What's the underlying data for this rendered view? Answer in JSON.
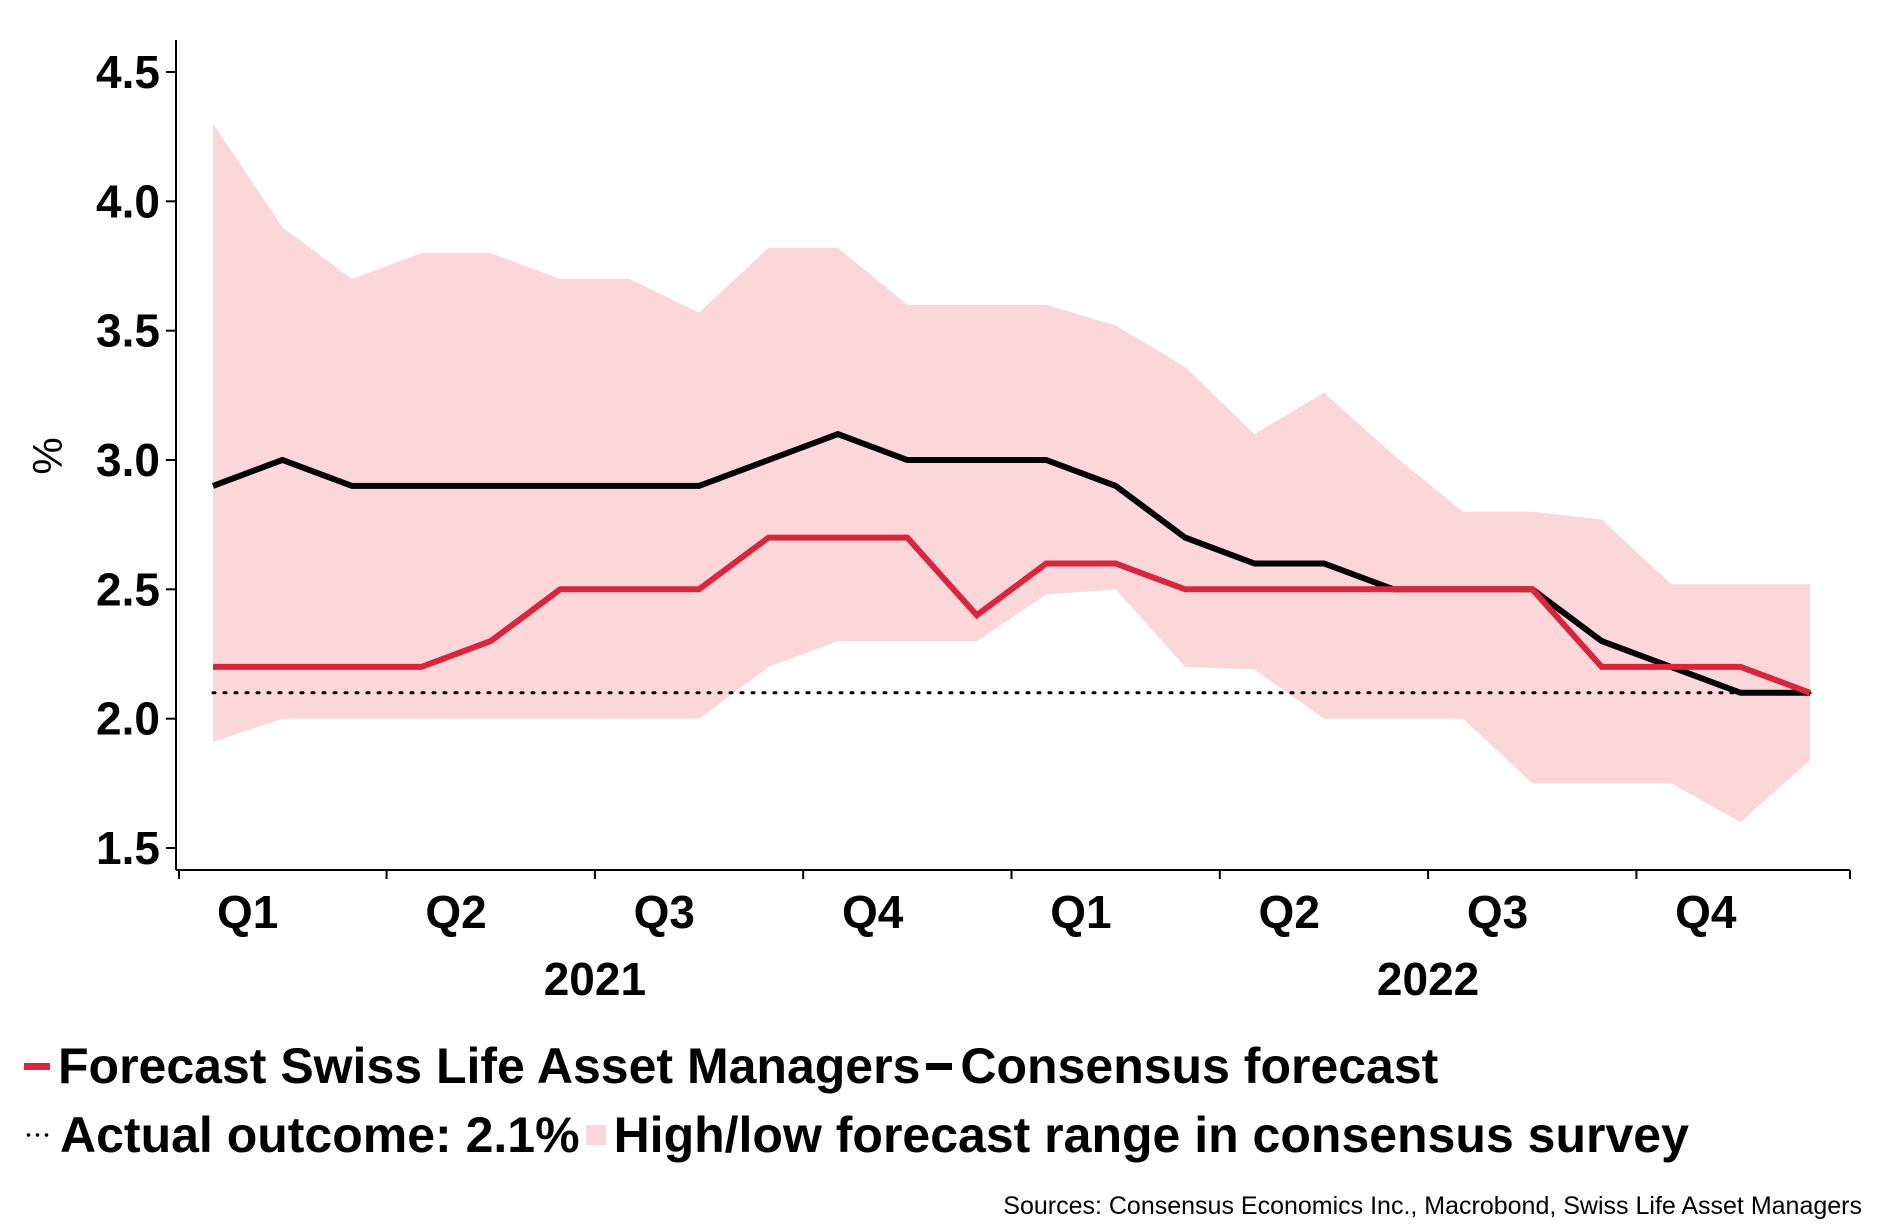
{
  "chart_data": {
    "type": "line",
    "title": "",
    "ylabel": "%",
    "xlabel": "",
    "ylim": [
      1.5,
      4.5
    ],
    "yticks": [
      1.5,
      2.0,
      2.5,
      3.0,
      3.5,
      4.0,
      4.5
    ],
    "ytick_labels": [
      "1.5",
      "2.0",
      "2.5",
      "3.0",
      "3.5",
      "4.0",
      "4.5"
    ],
    "num_points": 24,
    "quarter_ticks": [
      {
        "label": "Q1",
        "pos": 0.5
      },
      {
        "label": "Q2",
        "pos": 3.5
      },
      {
        "label": "Q3",
        "pos": 6.5
      },
      {
        "label": "Q4",
        "pos": 9.5
      },
      {
        "label": "Q1",
        "pos": 12.5
      },
      {
        "label": "Q2",
        "pos": 15.5
      },
      {
        "label": "Q3",
        "pos": 18.5
      },
      {
        "label": "Q4",
        "pos": 21.5
      }
    ],
    "years": [
      {
        "label": "2021",
        "pos": 5.5
      },
      {
        "label": "2022",
        "pos": 17.5
      }
    ],
    "series": [
      {
        "name": "Forecast Swiss Life Asset Managers",
        "color": "#d7263d",
        "values": [
          2.2,
          2.2,
          2.2,
          2.2,
          2.3,
          2.5,
          2.5,
          2.5,
          2.7,
          2.7,
          2.7,
          2.4,
          2.6,
          2.6,
          2.5,
          2.5,
          2.5,
          2.5,
          2.5,
          2.5,
          2.2,
          2.2,
          2.2,
          2.1
        ]
      },
      {
        "name": "Consensus forecast",
        "color": "#000000",
        "values": [
          2.9,
          3.0,
          2.9,
          2.9,
          2.9,
          2.9,
          2.9,
          2.9,
          3.0,
          3.1,
          3.0,
          3.0,
          3.0,
          2.9,
          2.7,
          2.6,
          2.6,
          2.5,
          2.5,
          2.5,
          2.3,
          2.2,
          2.1,
          2.1
        ]
      }
    ],
    "range": {
      "name": "High/low forecast range in consensus survey",
      "color": "#fcd7d9",
      "high": [
        4.3,
        3.9,
        3.7,
        3.8,
        3.8,
        3.7,
        3.7,
        3.57,
        3.82,
        3.82,
        3.6,
        3.6,
        3.6,
        3.52,
        3.36,
        3.1,
        3.26,
        3.02,
        2.8,
        2.8,
        2.77,
        2.52,
        2.52,
        2.52
      ],
      "low": [
        1.91,
        2.0,
        2.0,
        2.0,
        2.0,
        2.0,
        2.0,
        2.0,
        2.2,
        2.3,
        2.3,
        2.3,
        2.48,
        2.5,
        2.2,
        2.19,
        2.0,
        2.0,
        2.0,
        1.75,
        1.75,
        1.75,
        1.6,
        1.84
      ]
    },
    "actual": {
      "name": "Actual outcome: 2.1%",
      "value": 2.1,
      "color": "#000000"
    }
  },
  "legend": {
    "row1": [
      {
        "label": "Forecast Swiss Life Asset Managers",
        "color": "#d7263d",
        "kind": "line"
      },
      {
        "label": "Consensus forecast",
        "color": "#000000",
        "kind": "line"
      }
    ],
    "row2": [
      {
        "label": "Actual outcome: 2.1%",
        "color": "#000000",
        "kind": "dots"
      },
      {
        "label": "High/low forecast range in consensus survey",
        "color": "#fcd7d9",
        "kind": "area"
      }
    ]
  },
  "source": "Sources: Consensus Economics Inc., Macrobond, Swiss Life Asset Managers"
}
